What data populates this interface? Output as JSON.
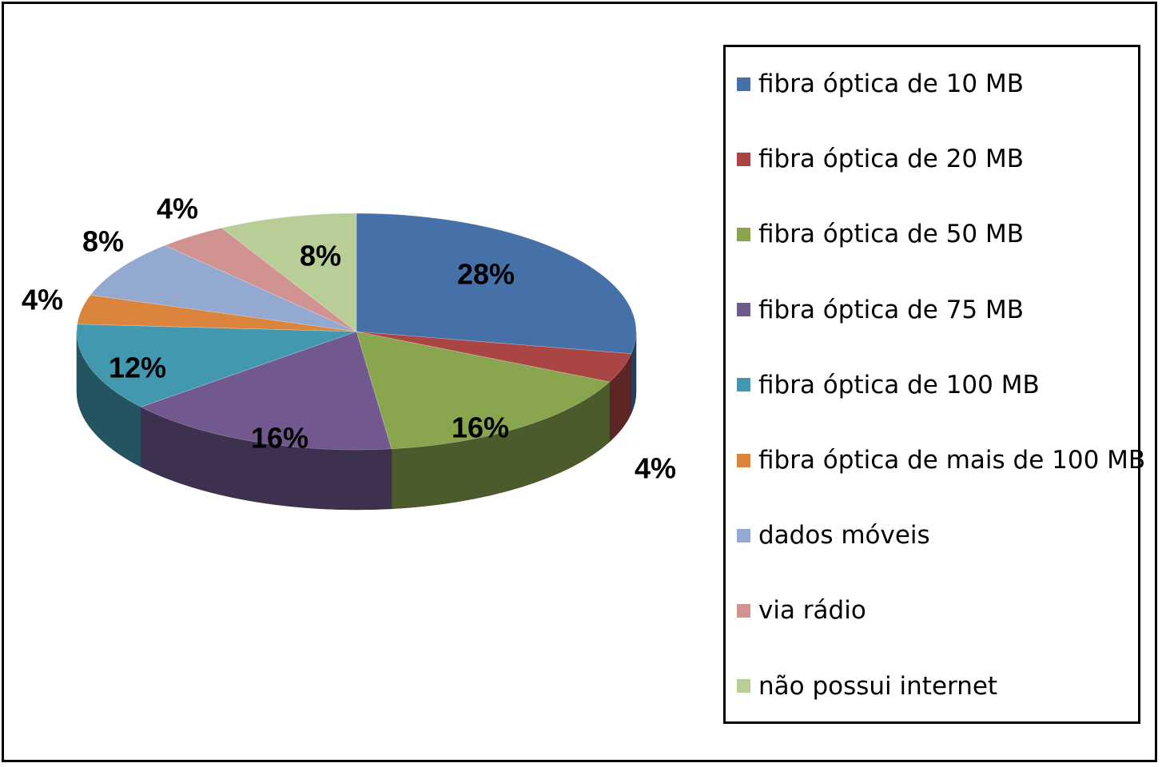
{
  "chart_data": {
    "type": "pie",
    "title": "",
    "slices": [
      {
        "label": "fibra óptica de 10 MB",
        "value": 28,
        "display": "28%",
        "color": "#4571A8"
      },
      {
        "label": "fibra óptica de 20 MB",
        "value": 4,
        "display": "4%",
        "color": "#A94542"
      },
      {
        "label": "fibra óptica de 50 MB",
        "value": 16,
        "display": "16%",
        "color": "#89A54E"
      },
      {
        "label": "fibra óptica de 75 MB",
        "value": 16,
        "display": "16%",
        "color": "#71588F"
      },
      {
        "label": "fibra óptica de 100 MB",
        "value": 12,
        "display": "12%",
        "color": "#4198AF"
      },
      {
        "label": "fibra óptica de mais de 100 MB",
        "value": 4,
        "display": "4%",
        "color": "#DB843D"
      },
      {
        "label": "dados móveis",
        "value": 8,
        "display": "8%",
        "color": "#93A9CF"
      },
      {
        "label": "via rádio",
        "value": 4,
        "display": "4%",
        "color": "#D19392"
      },
      {
        "label": "não possui internet",
        "value": 8,
        "display": "8%",
        "color": "#B9CD96"
      }
    ],
    "style": "3d-pie",
    "legend_position": "right"
  }
}
